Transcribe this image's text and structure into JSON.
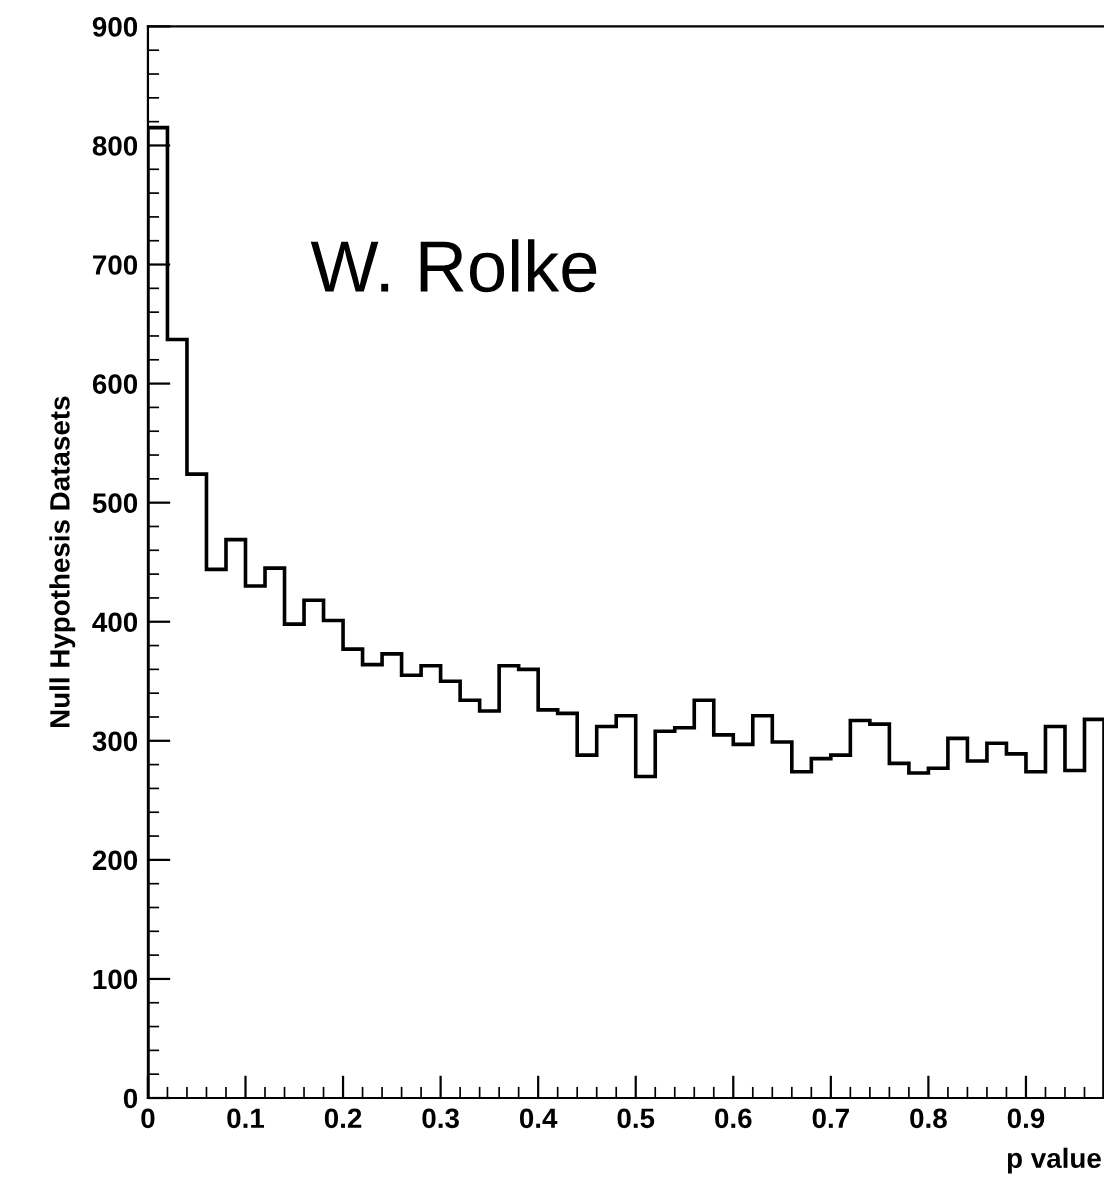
{
  "chart_data": {
    "type": "histogram",
    "xlabel": "p value",
    "ylabel": "Null Hypothesis Datasets",
    "annotations": [
      "W. Rolke"
    ],
    "bins": [
      0,
      0.02,
      0.04,
      0.06,
      0.08,
      0.1,
      0.12,
      0.14,
      0.16,
      0.18,
      0.2,
      0.22,
      0.24,
      0.26,
      0.28,
      0.3,
      0.32,
      0.34,
      0.36,
      0.38,
      0.4,
      0.42,
      0.44,
      0.46,
      0.48,
      0.5,
      0.52,
      0.54,
      0.56,
      0.58,
      0.6,
      0.62,
      0.64,
      0.66,
      0.68,
      0.7,
      0.72,
      0.74,
      0.76,
      0.78,
      0.8,
      0.82,
      0.84,
      0.86,
      0.88,
      0.9,
      0.92,
      0.94,
      0.96,
      0.98
    ],
    "values": [
      815,
      637,
      524,
      444,
      469,
      430,
      445,
      398,
      418,
      401,
      377,
      364,
      373,
      355,
      363,
      350,
      334,
      325,
      363,
      360,
      326,
      323,
      288,
      312,
      321,
      270,
      308,
      311,
      334,
      305,
      297,
      321,
      299,
      274,
      285,
      288,
      317,
      314,
      281,
      273,
      277,
      302,
      283,
      298,
      289,
      274,
      312,
      275,
      318
    ],
    "color": "#000000",
    "xlim": [
      0,
      0.98
    ],
    "ylim": [
      0,
      900
    ],
    "xticks": [
      0,
      0.1,
      0.2,
      0.3,
      0.4,
      0.5,
      0.6,
      0.7,
      0.8,
      0.9
    ],
    "yticks": [
      0,
      100,
      200,
      300,
      400,
      500,
      600,
      700,
      800,
      900
    ],
    "grid": false,
    "legend": false
  }
}
